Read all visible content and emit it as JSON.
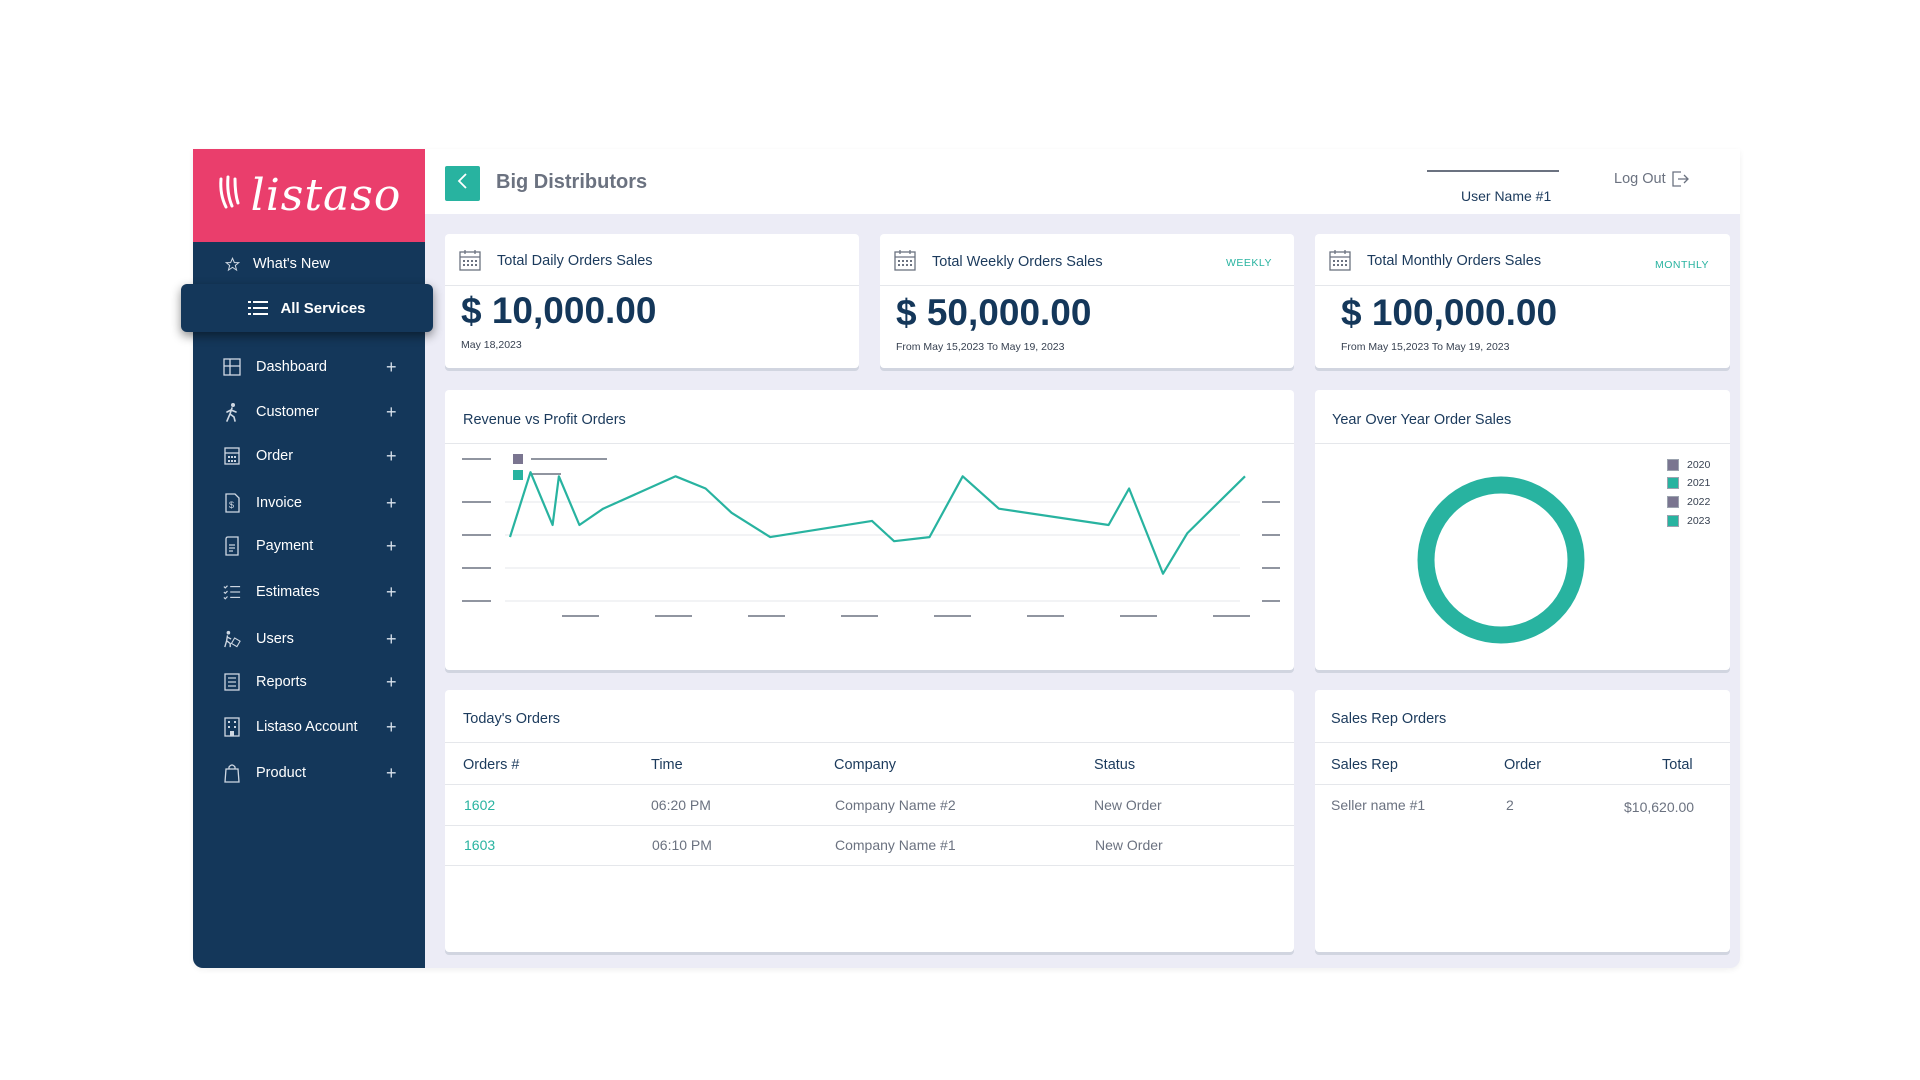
{
  "brand": {
    "name": "listaso",
    "color": "#ea3e6c"
  },
  "theme": {
    "sidebar": "#14375a",
    "accent": "#28b3a0",
    "background": "#ececf6"
  },
  "sidebar": {
    "whats_new": {
      "label": "What's New",
      "icon": "star-icon"
    },
    "all_services": {
      "label": "All Services",
      "icon": "menu-icon"
    },
    "items": [
      {
        "label": "Dashboard",
        "icon": "grid-icon"
      },
      {
        "label": "Customer",
        "icon": "person-walking-icon"
      },
      {
        "label": "Order",
        "icon": "calculator-icon"
      },
      {
        "label": "Invoice",
        "icon": "invoice-icon"
      },
      {
        "label": "Payment",
        "icon": "receipt-icon"
      },
      {
        "label": "Estimates",
        "icon": "checklist-icon"
      },
      {
        "label": "Users",
        "icon": "users-icon"
      },
      {
        "label": "Reports",
        "icon": "report-icon"
      },
      {
        "label": "Listaso Account",
        "icon": "building-icon"
      },
      {
        "label": "Product",
        "icon": "shopping-bag-icon"
      }
    ],
    "expand_symbol": "+"
  },
  "header": {
    "title": "Big Distributors",
    "user_name": "User Name #1",
    "logout_label": "Log Out"
  },
  "stats": [
    {
      "title": "Total Daily Orders Sales",
      "tag": "",
      "value": "$ 10,000.00",
      "sub": "May 18,2023"
    },
    {
      "title": "Total Weekly Orders Sales",
      "tag": "WEEKLY",
      "value": "$ 50,000.00",
      "sub": "From May 15,2023 To May 19, 2023"
    },
    {
      "title": "Total Monthly Orders Sales",
      "tag": "MONTHLY",
      "value": "$ 100,000.00",
      "sub": "From May 15,2023 To May 19, 2023"
    }
  ],
  "revenue_chart": {
    "title": "Revenue vs Profit Orders",
    "legend_colors": [
      "#7a7590",
      "#28b3a0"
    ],
    "series": [
      {
        "color": "#28b3a0",
        "values": [
          15,
          31,
          18,
          30,
          18,
          22,
          30,
          27,
          21,
          15,
          19,
          14,
          15,
          30,
          22,
          18,
          27,
          6,
          16,
          30
        ]
      }
    ]
  },
  "yoy_chart": {
    "title": "Year Over Year Order Sales",
    "legend": [
      {
        "label": "2020",
        "color": "#7a7590"
      },
      {
        "label": "2021",
        "color": "#28b3a0"
      },
      {
        "label": "2022",
        "color": "#7a7590"
      },
      {
        "label": "2023",
        "color": "#28b3a0"
      }
    ],
    "ring_color": "#28b3a0"
  },
  "todays_orders": {
    "title": "Today's Orders",
    "columns": [
      "Orders #",
      "Time",
      "Company",
      "Status"
    ],
    "rows": [
      {
        "order": "1602",
        "time": "06:20 PM",
        "company": "Company Name #2",
        "status": "New Order"
      },
      {
        "order": "1603",
        "time": "06:10 PM",
        "company": "Company Name #1",
        "status": "New Order"
      }
    ]
  },
  "sales_rep_orders": {
    "title": "Sales Rep Orders",
    "columns": [
      "Sales Rep",
      "Order",
      "Total"
    ],
    "rows": [
      {
        "rep": "Seller name #1",
        "order": "2",
        "total": "$10,620.00"
      }
    ]
  }
}
